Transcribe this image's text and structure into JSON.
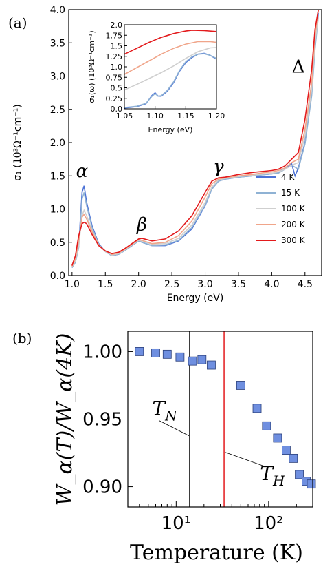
{
  "panel_a_label": "(a)",
  "panel_b_label": "(b)",
  "chart_data": [
    {
      "type": "line",
      "xlabel": "Energy (eV)",
      "ylabel": "σ₁ (10³Ω⁻¹cm⁻¹)",
      "xlim": [
        0.95,
        4.75
      ],
      "ylim": [
        0.0,
        4.0
      ],
      "xticks": [
        "1.0",
        "1.5",
        "2.0",
        "2.5",
        "3.0",
        "3.5",
        "4.0",
        "4.5"
      ],
      "yticks": [
        "0.0",
        "0.5",
        "1.0",
        "1.5",
        "2.0",
        "2.5",
        "3.0",
        "3.5",
        "4.0"
      ],
      "grid": false,
      "legend_position": "right",
      "annotations": [
        "α",
        "β",
        "γ",
        "Δ"
      ],
      "annotation_positions": [
        [
          1.15,
          1.48
        ],
        [
          2.05,
          0.68
        ],
        [
          3.2,
          1.55
        ],
        [
          4.4,
          3.05
        ]
      ],
      "series": [
        {
          "name": "4 K",
          "color": "#4c72d6",
          "values": [
            [
              1.0,
              0.12
            ],
            [
              1.05,
              0.2
            ],
            [
              1.1,
              0.45
            ],
            [
              1.15,
              1.25
            ],
            [
              1.18,
              1.35
            ],
            [
              1.22,
              1.1
            ],
            [
              1.3,
              0.75
            ],
            [
              1.4,
              0.48
            ],
            [
              1.5,
              0.36
            ],
            [
              1.6,
              0.3
            ],
            [
              1.7,
              0.32
            ],
            [
              1.8,
              0.38
            ],
            [
              1.9,
              0.45
            ],
            [
              2.0,
              0.52
            ],
            [
              2.05,
              0.5
            ],
            [
              2.2,
              0.45
            ],
            [
              2.4,
              0.45
            ],
            [
              2.6,
              0.52
            ],
            [
              2.8,
              0.7
            ],
            [
              3.0,
              1.05
            ],
            [
              3.1,
              1.3
            ],
            [
              3.2,
              1.42
            ],
            [
              3.3,
              1.45
            ],
            [
              3.5,
              1.48
            ],
            [
              3.7,
              1.5
            ],
            [
              3.9,
              1.52
            ],
            [
              4.0,
              1.53
            ],
            [
              4.1,
              1.55
            ],
            [
              4.2,
              1.62
            ],
            [
              4.3,
              1.68
            ],
            [
              4.35,
              1.5
            ],
            [
              4.4,
              1.62
            ],
            [
              4.5,
              2.0
            ],
            [
              4.6,
              2.8
            ],
            [
              4.65,
              3.5
            ],
            [
              4.7,
              3.95
            ]
          ]
        },
        {
          "name": "15 K",
          "color": "#8fb2d4",
          "values": [
            [
              1.0,
              0.12
            ],
            [
              1.05,
              0.2
            ],
            [
              1.1,
              0.42
            ],
            [
              1.15,
              1.15
            ],
            [
              1.18,
              1.25
            ],
            [
              1.22,
              1.05
            ],
            [
              1.3,
              0.72
            ],
            [
              1.4,
              0.47
            ],
            [
              1.5,
              0.36
            ],
            [
              1.6,
              0.3
            ],
            [
              1.7,
              0.32
            ],
            [
              1.8,
              0.38
            ],
            [
              1.9,
              0.45
            ],
            [
              2.0,
              0.52
            ],
            [
              2.05,
              0.5
            ],
            [
              2.2,
              0.45
            ],
            [
              2.4,
              0.46
            ],
            [
              2.6,
              0.53
            ],
            [
              2.8,
              0.72
            ],
            [
              3.0,
              1.06
            ],
            [
              3.1,
              1.3
            ],
            [
              3.2,
              1.42
            ],
            [
              3.3,
              1.45
            ],
            [
              3.5,
              1.48
            ],
            [
              3.7,
              1.5
            ],
            [
              3.9,
              1.52
            ],
            [
              4.0,
              1.53
            ],
            [
              4.1,
              1.54
            ],
            [
              4.2,
              1.6
            ],
            [
              4.3,
              1.66
            ],
            [
              4.4,
              1.6
            ],
            [
              4.5,
              1.98
            ],
            [
              4.6,
              2.7
            ],
            [
              4.65,
              3.4
            ],
            [
              4.7,
              3.9
            ]
          ]
        },
        {
          "name": "100 K",
          "color": "#cfcfcf",
          "values": [
            [
              1.0,
              0.13
            ],
            [
              1.05,
              0.22
            ],
            [
              1.1,
              0.45
            ],
            [
              1.15,
              0.9
            ],
            [
              1.18,
              0.98
            ],
            [
              1.22,
              0.9
            ],
            [
              1.3,
              0.68
            ],
            [
              1.4,
              0.46
            ],
            [
              1.5,
              0.36
            ],
            [
              1.6,
              0.31
            ],
            [
              1.7,
              0.33
            ],
            [
              1.8,
              0.39
            ],
            [
              1.9,
              0.46
            ],
            [
              2.0,
              0.53
            ],
            [
              2.05,
              0.52
            ],
            [
              2.2,
              0.47
            ],
            [
              2.4,
              0.48
            ],
            [
              2.6,
              0.56
            ],
            [
              2.8,
              0.76
            ],
            [
              3.0,
              1.1
            ],
            [
              3.1,
              1.33
            ],
            [
              3.2,
              1.44
            ],
            [
              3.3,
              1.46
            ],
            [
              3.5,
              1.49
            ],
            [
              3.7,
              1.51
            ],
            [
              3.9,
              1.53
            ],
            [
              4.0,
              1.54
            ],
            [
              4.1,
              1.56
            ],
            [
              4.2,
              1.6
            ],
            [
              4.3,
              1.66
            ],
            [
              4.4,
              1.7
            ],
            [
              4.5,
              2.1
            ],
            [
              4.6,
              2.8
            ],
            [
              4.65,
              3.5
            ],
            [
              4.7,
              3.9
            ]
          ]
        },
        {
          "name": "200 K",
          "color": "#f0a58a",
          "values": [
            [
              1.0,
              0.14
            ],
            [
              1.05,
              0.25
            ],
            [
              1.1,
              0.52
            ],
            [
              1.15,
              0.88
            ],
            [
              1.18,
              0.92
            ],
            [
              1.22,
              0.85
            ],
            [
              1.3,
              0.66
            ],
            [
              1.4,
              0.46
            ],
            [
              1.5,
              0.37
            ],
            [
              1.6,
              0.32
            ],
            [
              1.7,
              0.34
            ],
            [
              1.8,
              0.4
            ],
            [
              1.9,
              0.47
            ],
            [
              2.0,
              0.54
            ],
            [
              2.05,
              0.53
            ],
            [
              2.2,
              0.48
            ],
            [
              2.4,
              0.5
            ],
            [
              2.6,
              0.6
            ],
            [
              2.8,
              0.82
            ],
            [
              3.0,
              1.18
            ],
            [
              3.1,
              1.38
            ],
            [
              3.2,
              1.45
            ],
            [
              3.3,
              1.47
            ],
            [
              3.5,
              1.5
            ],
            [
              3.7,
              1.52
            ],
            [
              3.9,
              1.55
            ],
            [
              4.0,
              1.56
            ],
            [
              4.1,
              1.58
            ],
            [
              4.2,
              1.62
            ],
            [
              4.3,
              1.7
            ],
            [
              4.4,
              1.75
            ],
            [
              4.5,
              2.2
            ],
            [
              4.6,
              2.9
            ],
            [
              4.65,
              3.6
            ],
            [
              4.7,
              4.0
            ]
          ]
        },
        {
          "name": "300 K",
          "color": "#e31a1c",
          "values": [
            [
              1.0,
              0.15
            ],
            [
              1.05,
              0.3
            ],
            [
              1.1,
              0.6
            ],
            [
              1.15,
              0.78
            ],
            [
              1.18,
              0.8
            ],
            [
              1.22,
              0.78
            ],
            [
              1.3,
              0.62
            ],
            [
              1.4,
              0.45
            ],
            [
              1.5,
              0.37
            ],
            [
              1.6,
              0.33
            ],
            [
              1.7,
              0.35
            ],
            [
              1.8,
              0.41
            ],
            [
              1.9,
              0.48
            ],
            [
              2.0,
              0.55
            ],
            [
              2.05,
              0.56
            ],
            [
              2.2,
              0.52
            ],
            [
              2.4,
              0.55
            ],
            [
              2.6,
              0.67
            ],
            [
              2.8,
              0.9
            ],
            [
              3.0,
              1.25
            ],
            [
              3.1,
              1.42
            ],
            [
              3.2,
              1.47
            ],
            [
              3.3,
              1.48
            ],
            [
              3.5,
              1.52
            ],
            [
              3.7,
              1.55
            ],
            [
              3.9,
              1.57
            ],
            [
              4.0,
              1.58
            ],
            [
              4.1,
              1.6
            ],
            [
              4.2,
              1.65
            ],
            [
              4.3,
              1.75
            ],
            [
              4.4,
              1.85
            ],
            [
              4.5,
              2.35
            ],
            [
              4.6,
              3.1
            ],
            [
              4.65,
              3.7
            ],
            [
              4.7,
              4.0
            ]
          ]
        }
      ]
    },
    {
      "type": "line",
      "xlabel": "Energy (eV)",
      "ylabel": "σ₁(ω) (10³Ω⁻¹cm⁻¹)",
      "xlim": [
        1.05,
        1.2
      ],
      "ylim": [
        0.0,
        2.0
      ],
      "xticks": [
        "1.05",
        "1.10",
        "1.15",
        "1.20"
      ],
      "yticks": [
        "0.0",
        "0.25",
        "0.5",
        "0.75",
        "1.0",
        "1.25",
        "1.5",
        "1.75",
        "2.0"
      ],
      "series": [
        {
          "name": "4 K",
          "color": "#4c72d6",
          "values": [
            [
              1.05,
              0.02
            ],
            [
              1.07,
              0.05
            ],
            [
              1.085,
              0.12
            ],
            [
              1.095,
              0.32
            ],
            [
              1.1,
              0.38
            ],
            [
              1.105,
              0.3
            ],
            [
              1.11,
              0.3
            ],
            [
              1.12,
              0.42
            ],
            [
              1.13,
              0.62
            ],
            [
              1.14,
              0.9
            ],
            [
              1.15,
              1.1
            ],
            [
              1.16,
              1.22
            ],
            [
              1.17,
              1.3
            ],
            [
              1.18,
              1.32
            ],
            [
              1.19,
              1.27
            ],
            [
              1.2,
              1.18
            ]
          ]
        },
        {
          "name": "15 K",
          "color": "#8fb2d4",
          "values": [
            [
              1.05,
              0.03
            ],
            [
              1.07,
              0.06
            ],
            [
              1.085,
              0.13
            ],
            [
              1.095,
              0.3
            ],
            [
              1.1,
              0.36
            ],
            [
              1.105,
              0.3
            ],
            [
              1.11,
              0.31
            ],
            [
              1.12,
              0.44
            ],
            [
              1.13,
              0.64
            ],
            [
              1.14,
              0.92
            ],
            [
              1.15,
              1.12
            ],
            [
              1.16,
              1.24
            ],
            [
              1.17,
              1.3
            ],
            [
              1.18,
              1.31
            ],
            [
              1.19,
              1.27
            ],
            [
              1.2,
              1.2
            ]
          ]
        },
        {
          "name": "100 K",
          "color": "#cfcfcf",
          "values": [
            [
              1.05,
              0.45
            ],
            [
              1.07,
              0.58
            ],
            [
              1.09,
              0.72
            ],
            [
              1.11,
              0.86
            ],
            [
              1.13,
              1.02
            ],
            [
              1.15,
              1.2
            ],
            [
              1.17,
              1.36
            ],
            [
              1.19,
              1.45
            ],
            [
              1.2,
              1.46
            ]
          ]
        },
        {
          "name": "200 K",
          "color": "#f0a58a",
          "values": [
            [
              1.05,
              0.82
            ],
            [
              1.07,
              0.98
            ],
            [
              1.09,
              1.14
            ],
            [
              1.11,
              1.3
            ],
            [
              1.13,
              1.44
            ],
            [
              1.15,
              1.54
            ],
            [
              1.17,
              1.6
            ],
            [
              1.19,
              1.6
            ],
            [
              1.2,
              1.58
            ]
          ]
        },
        {
          "name": "300 K",
          "color": "#e31a1c",
          "values": [
            [
              1.05,
              1.3
            ],
            [
              1.07,
              1.44
            ],
            [
              1.09,
              1.58
            ],
            [
              1.11,
              1.7
            ],
            [
              1.13,
              1.79
            ],
            [
              1.15,
              1.85
            ],
            [
              1.16,
              1.87
            ],
            [
              1.18,
              1.86
            ],
            [
              1.2,
              1.84
            ]
          ]
        }
      ]
    },
    {
      "type": "scatter",
      "xlabel": "Temperature (K)",
      "ylabel": "W_α(T)/W_α(4K)",
      "xscale": "log",
      "xlim": [
        3,
        300
      ],
      "ylim": [
        0.885,
        1.015
      ],
      "xticks": [
        "10¹",
        "10²"
      ],
      "yticks": [
        "0.90",
        "0.95",
        "1.00"
      ],
      "marker_color": "#6f8fe0",
      "vlines": [
        {
          "label": "T_N",
          "x": 14,
          "color": "#000000"
        },
        {
          "label": "T_H",
          "x": 33,
          "color": "#e31a1c"
        }
      ],
      "annotation_positions": [
        [
          7.5,
          0.953
        ],
        [
          110,
          0.905
        ]
      ],
      "points": [
        [
          4,
          1.0
        ],
        [
          6,
          0.999
        ],
        [
          8,
          0.998
        ],
        [
          11,
          0.996
        ],
        [
          15,
          0.993
        ],
        [
          19,
          0.994
        ],
        [
          24,
          0.99
        ],
        [
          50,
          0.975
        ],
        [
          75,
          0.958
        ],
        [
          95,
          0.945
        ],
        [
          125,
          0.936
        ],
        [
          155,
          0.927
        ],
        [
          185,
          0.921
        ],
        [
          215,
          0.909
        ],
        [
          255,
          0.904
        ],
        [
          290,
          0.902
        ]
      ]
    }
  ]
}
